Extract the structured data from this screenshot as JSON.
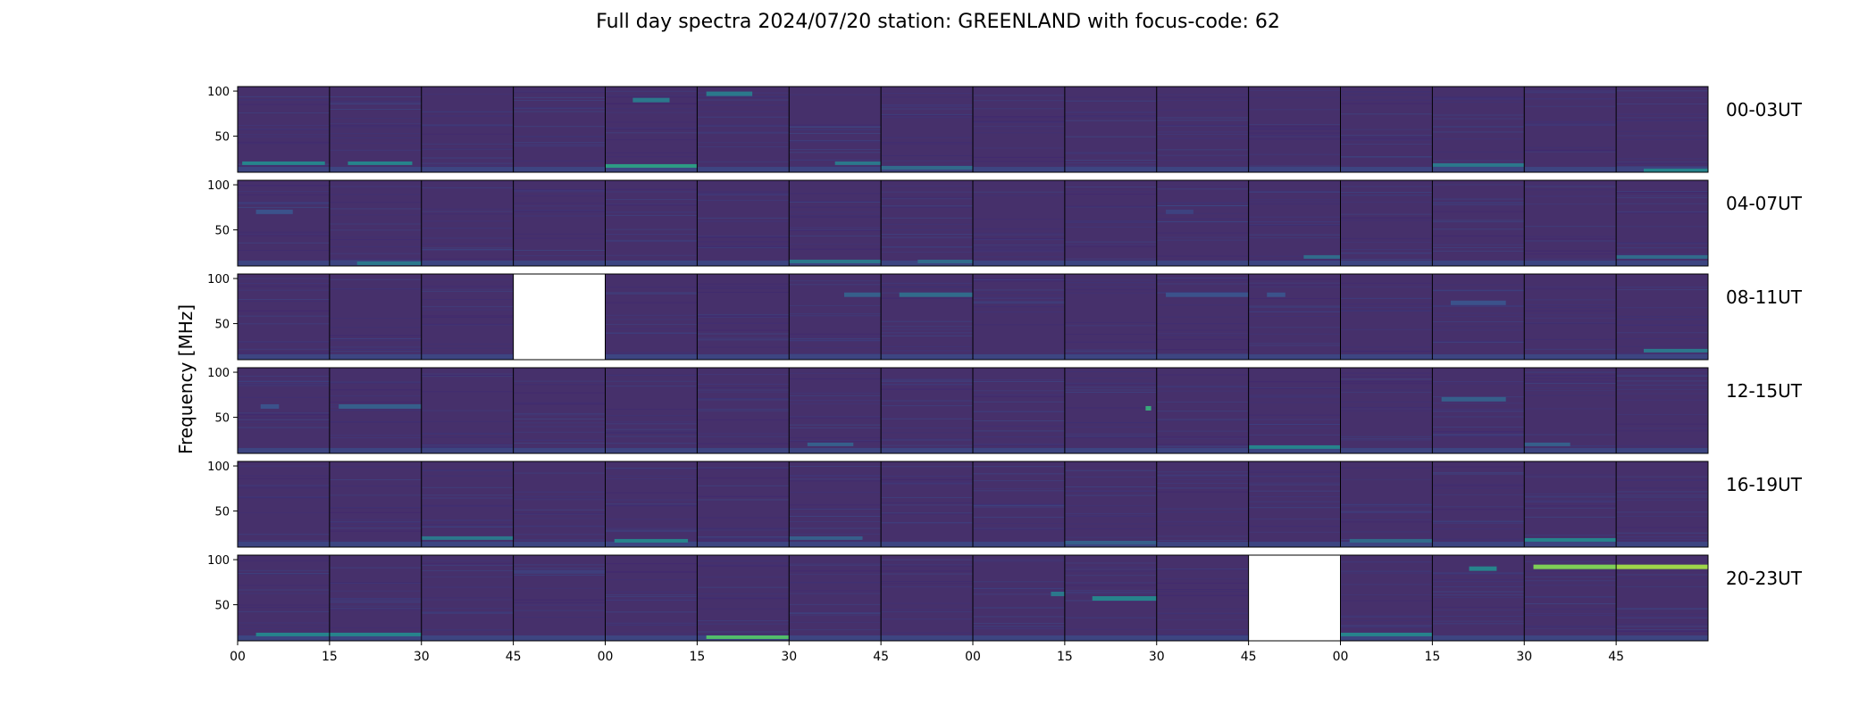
{
  "chart_data": {
    "type": "heatmap",
    "title": "Full day spectra 2024/07/20 station: GREENLAND with focus-code: 62",
    "ylabel": "Frequency [MHz]",
    "xlabel": "",
    "yticks": [
      "100",
      "50"
    ],
    "ytick_values": [
      100,
      50
    ],
    "ylim": [
      10,
      105
    ],
    "xtick_labels": [
      "00",
      "15",
      "30",
      "45",
      "00",
      "15",
      "30",
      "45",
      "00",
      "15",
      "30",
      "45",
      "00",
      "15",
      "30",
      "45"
    ],
    "colormap": "viridis",
    "panel_minutes": 15,
    "panels_per_row": 16,
    "background_color": "#46306b",
    "rows": [
      {
        "label": "00-03UT",
        "missing": [],
        "features": [
          {
            "col": 0,
            "f": 20,
            "x0": 0.05,
            "x1": 0.95,
            "level": 0.45
          },
          {
            "col": 1,
            "f": 20,
            "x0": 0.2,
            "x1": 0.9,
            "level": 0.45
          },
          {
            "col": 4,
            "f": 17,
            "x0": 0.0,
            "x1": 1.0,
            "level": 0.55
          },
          {
            "col": 4,
            "f": 90,
            "x0": 0.3,
            "x1": 0.7,
            "level": 0.4
          },
          {
            "col": 5,
            "f": 97,
            "x0": 0.1,
            "x1": 0.6,
            "level": 0.4
          },
          {
            "col": 6,
            "f": 20,
            "x0": 0.5,
            "x1": 1.0,
            "level": 0.4
          },
          {
            "col": 7,
            "f": 15,
            "x0": 0.0,
            "x1": 1.0,
            "level": 0.35
          },
          {
            "col": 13,
            "f": 18,
            "x0": 0.0,
            "x1": 1.0,
            "level": 0.4
          },
          {
            "col": 15,
            "f": 12,
            "x0": 0.3,
            "x1": 1.0,
            "level": 0.45
          }
        ]
      },
      {
        "label": "04-07UT",
        "missing": [],
        "features": [
          {
            "col": 0,
            "f": 70,
            "x0": 0.2,
            "x1": 0.6,
            "level": 0.25
          },
          {
            "col": 1,
            "f": 13,
            "x0": 0.3,
            "x1": 1.0,
            "level": 0.4
          },
          {
            "col": 6,
            "f": 15,
            "x0": 0.0,
            "x1": 1.0,
            "level": 0.4
          },
          {
            "col": 7,
            "f": 15,
            "x0": 0.4,
            "x1": 1.0,
            "level": 0.35
          },
          {
            "col": 10,
            "f": 70,
            "x0": 0.1,
            "x1": 0.4,
            "level": 0.2
          },
          {
            "col": 11,
            "f": 20,
            "x0": 0.6,
            "x1": 1.0,
            "level": 0.35
          },
          {
            "col": 15,
            "f": 20,
            "x0": 0.0,
            "x1": 1.0,
            "level": 0.35
          }
        ]
      },
      {
        "label": "08-11UT",
        "missing": [
          3
        ],
        "features": [
          {
            "col": 6,
            "f": 82,
            "x0": 0.6,
            "x1": 1.0,
            "level": 0.3
          },
          {
            "col": 7,
            "f": 82,
            "x0": 0.2,
            "x1": 1.0,
            "level": 0.35
          },
          {
            "col": 10,
            "f": 82,
            "x0": 0.1,
            "x1": 1.0,
            "level": 0.25
          },
          {
            "col": 11,
            "f": 82,
            "x0": 0.2,
            "x1": 0.4,
            "level": 0.25
          },
          {
            "col": 13,
            "f": 73,
            "x0": 0.2,
            "x1": 0.8,
            "level": 0.25
          },
          {
            "col": 15,
            "f": 20,
            "x0": 0.3,
            "x1": 1.0,
            "level": 0.4
          }
        ]
      },
      {
        "label": "12-15UT",
        "missing": [],
        "features": [
          {
            "col": 0,
            "f": 62,
            "x0": 0.25,
            "x1": 0.45,
            "level": 0.25
          },
          {
            "col": 1,
            "f": 62,
            "x0": 0.1,
            "x1": 1.0,
            "level": 0.3
          },
          {
            "col": 6,
            "f": 20,
            "x0": 0.2,
            "x1": 0.7,
            "level": 0.3
          },
          {
            "col": 9,
            "f": 60,
            "x0": 0.88,
            "x1": 0.94,
            "level": 0.6
          },
          {
            "col": 11,
            "f": 17,
            "x0": 0.0,
            "x1": 1.0,
            "level": 0.45
          },
          {
            "col": 13,
            "f": 70,
            "x0": 0.1,
            "x1": 0.8,
            "level": 0.3
          },
          {
            "col": 14,
            "f": 20,
            "x0": 0.0,
            "x1": 0.5,
            "level": 0.3
          }
        ]
      },
      {
        "label": "16-19UT",
        "missing": [],
        "features": [
          {
            "col": 2,
            "f": 20,
            "x0": 0.0,
            "x1": 1.0,
            "level": 0.4
          },
          {
            "col": 4,
            "f": 17,
            "x0": 0.1,
            "x1": 0.9,
            "level": 0.45
          },
          {
            "col": 6,
            "f": 20,
            "x0": 0.0,
            "x1": 0.8,
            "level": 0.3
          },
          {
            "col": 9,
            "f": 15,
            "x0": 0.0,
            "x1": 1.0,
            "level": 0.3
          },
          {
            "col": 12,
            "f": 17,
            "x0": 0.1,
            "x1": 1.0,
            "level": 0.35
          },
          {
            "col": 14,
            "f": 18,
            "x0": 0.0,
            "x1": 1.0,
            "level": 0.45
          }
        ]
      },
      {
        "label": "20-23UT",
        "missing": [
          11
        ],
        "features": [
          {
            "col": 0,
            "f": 17,
            "x0": 0.2,
            "x1": 1.0,
            "level": 0.45
          },
          {
            "col": 1,
            "f": 17,
            "x0": 0.0,
            "x1": 1.0,
            "level": 0.45
          },
          {
            "col": 5,
            "f": 14,
            "x0": 0.1,
            "x1": 1.0,
            "level": 0.7
          },
          {
            "col": 8,
            "f": 62,
            "x0": 0.85,
            "x1": 1.0,
            "level": 0.4
          },
          {
            "col": 9,
            "f": 57,
            "x0": 0.3,
            "x1": 1.0,
            "level": 0.45
          },
          {
            "col": 12,
            "f": 17,
            "x0": 0.0,
            "x1": 1.0,
            "level": 0.45
          },
          {
            "col": 13,
            "f": 90,
            "x0": 0.4,
            "x1": 0.7,
            "level": 0.45
          },
          {
            "col": 14,
            "f": 92,
            "x0": 0.1,
            "x1": 1.0,
            "level": 0.8
          },
          {
            "col": 15,
            "f": 92,
            "x0": 0.0,
            "x1": 1.0,
            "level": 0.85
          }
        ]
      }
    ]
  }
}
